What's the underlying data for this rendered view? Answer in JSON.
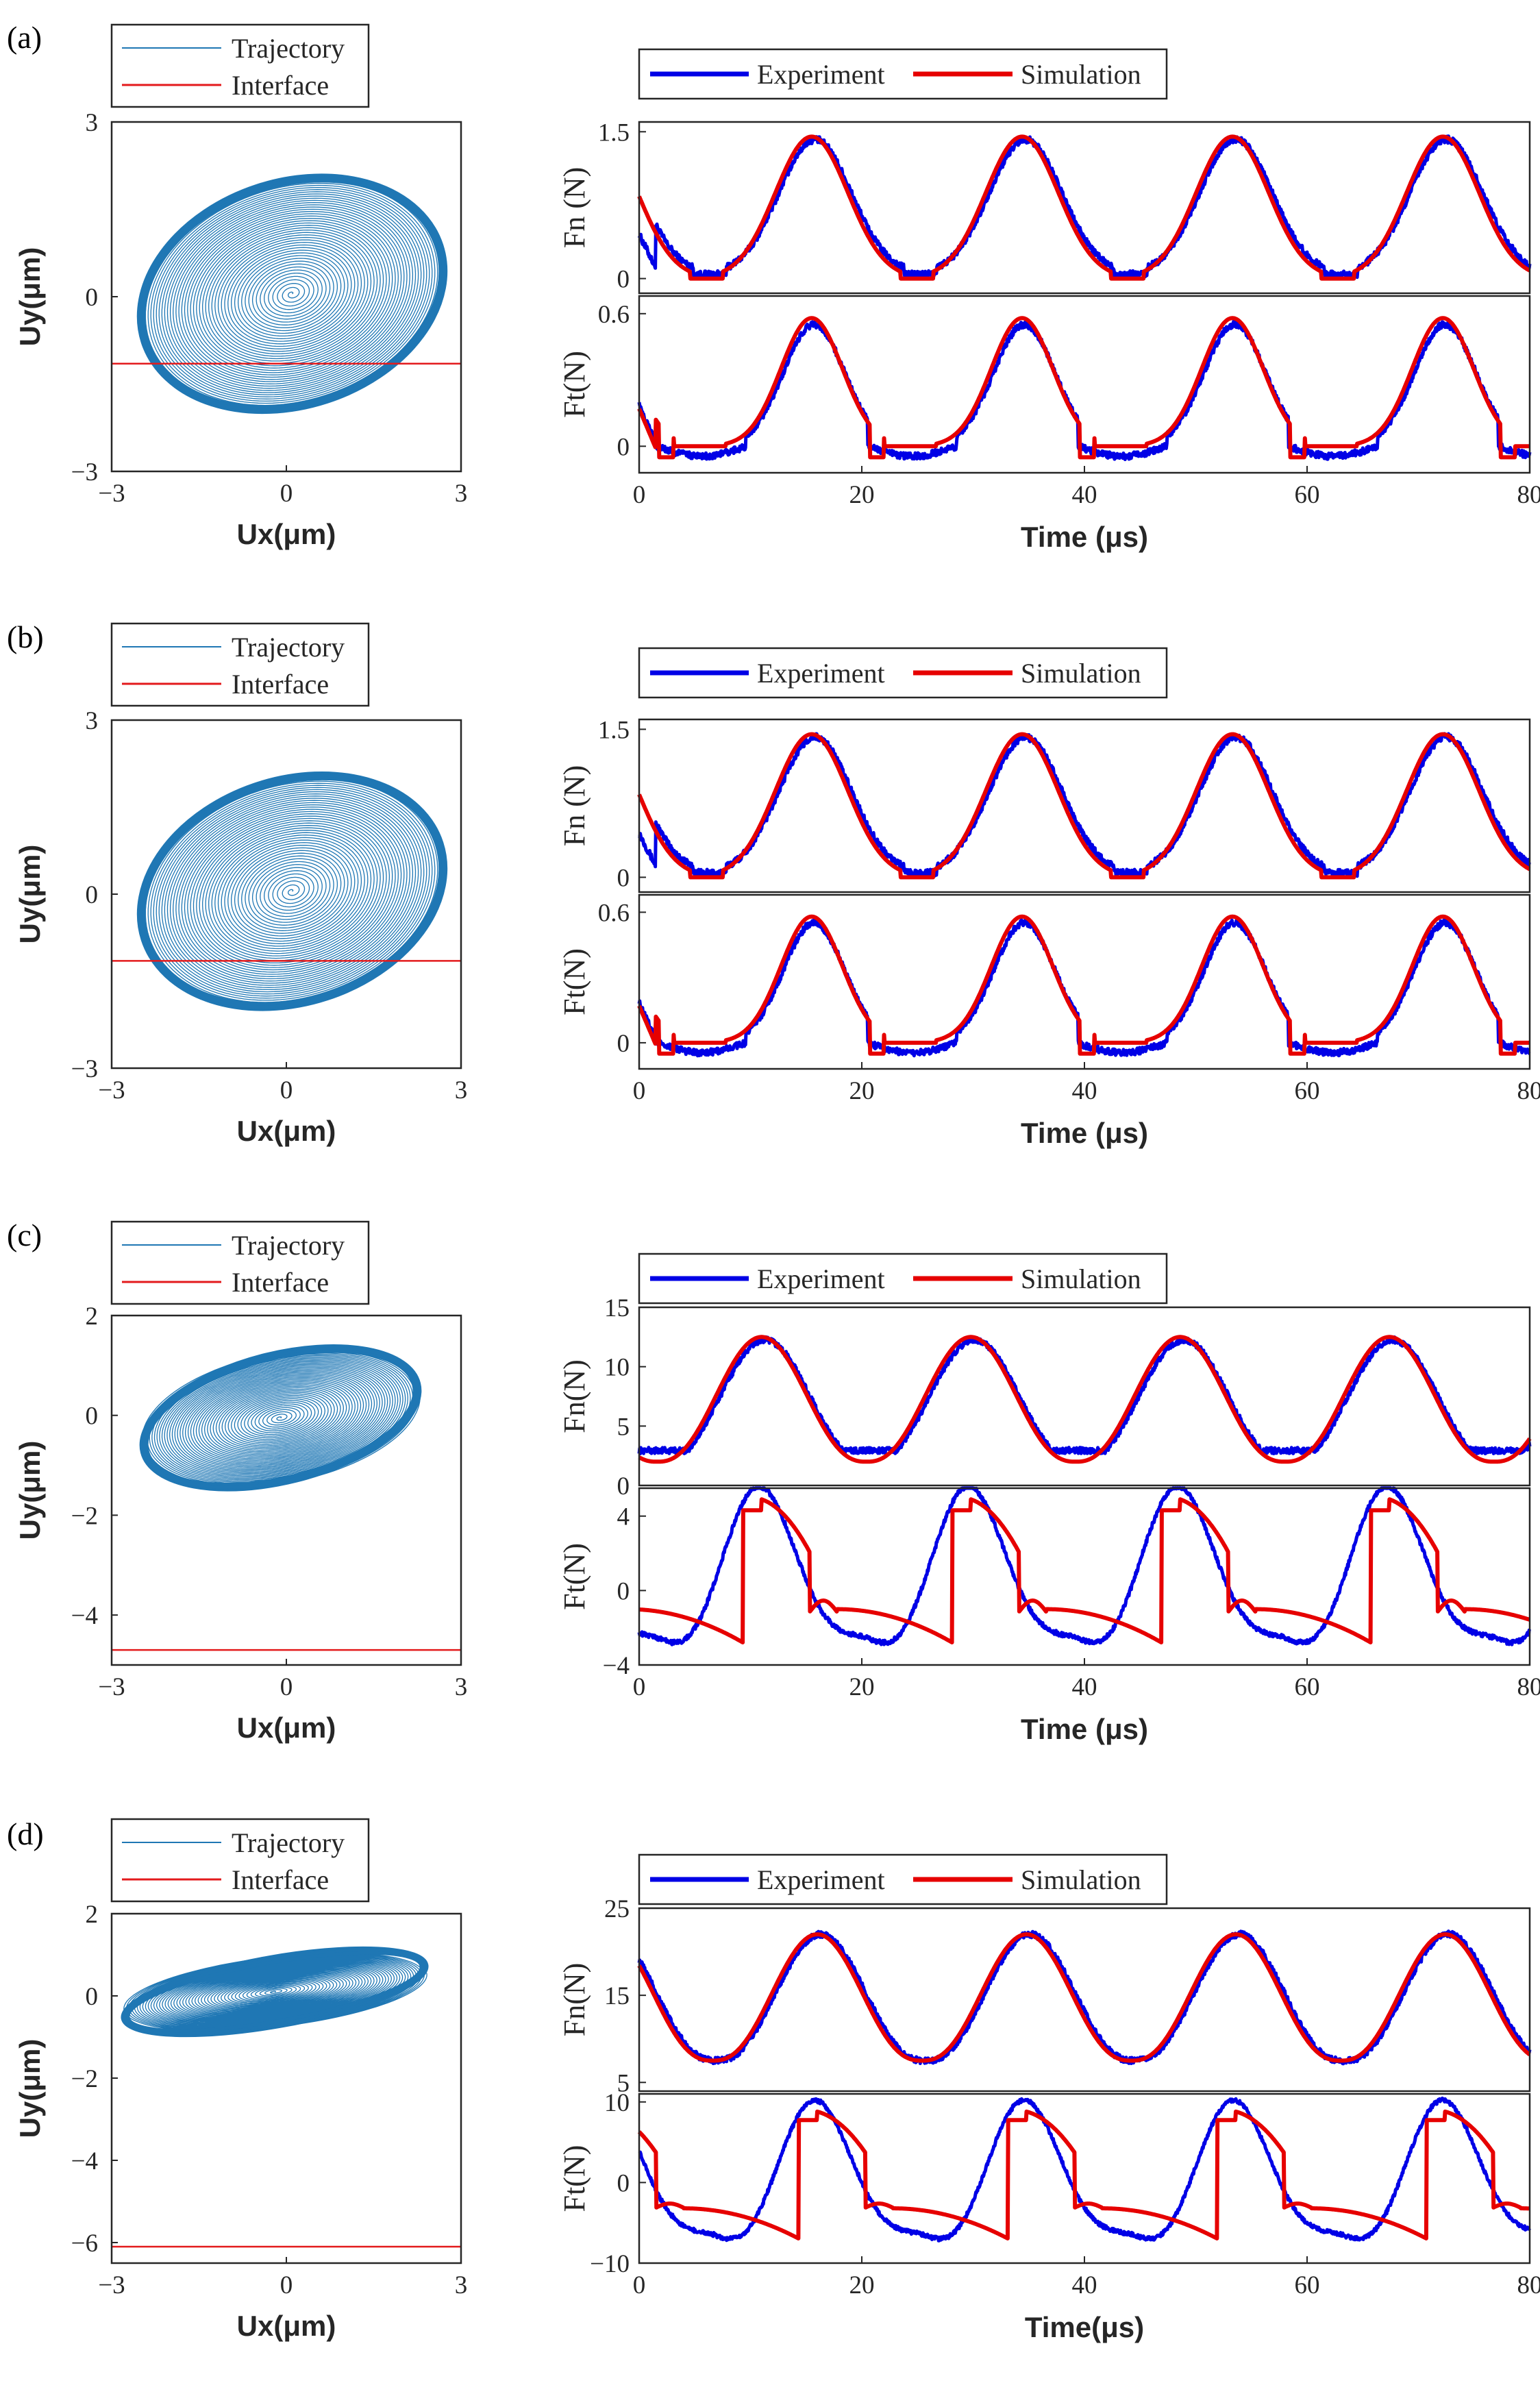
{
  "figure": {
    "panels": [
      {
        "label": "(a)",
        "legend_left": {
          "trajectory": "Trajectory",
          "interface": "Interface"
        },
        "legend_right": {
          "experiment": "Experiment",
          "simulation": "Simulation"
        },
        "xlabel_left": "Ux(μm)",
        "ylabel_left": "Uy(μm)",
        "xlabel_right": "Time (μs)",
        "ylabel_fn": "Fn (N)",
        "ylabel_ft": "Ft(N)"
      },
      {
        "label": "(b)",
        "legend_left": {
          "trajectory": "Trajectory",
          "interface": "Interface"
        },
        "legend_right": {
          "experiment": "Experiment",
          "simulation": "Simulation"
        },
        "xlabel_left": "Ux(μm)",
        "ylabel_left": "Uy(μm)",
        "xlabel_right": "Time (μs)",
        "ylabel_fn": "Fn (N)",
        "ylabel_ft": "Ft(N)"
      },
      {
        "label": "(c)",
        "legend_left": {
          "trajectory": "Trajectory",
          "interface": "Interface"
        },
        "legend_right": {
          "experiment": "Experiment",
          "simulation": "Simulation"
        },
        "xlabel_left": "Ux(μm)",
        "ylabel_left": "Uy(μm)",
        "xlabel_right": "Time (μs)",
        "ylabel_fn": "Fn(N)",
        "ylabel_ft": "Ft(N)"
      },
      {
        "label": "(d)",
        "legend_left": {
          "trajectory": "Trajectory",
          "interface": "Interface"
        },
        "legend_right": {
          "experiment": "Experiment",
          "simulation": "Simulation"
        },
        "xlabel_left": "Ux(μm)",
        "ylabel_left": "Uy(μm)",
        "xlabel_right": "Time(μs)",
        "ylabel_fn": "Fn(N)",
        "ylabel_ft": "Ft(N)"
      }
    ],
    "colors": {
      "trajectory": "#1f77b4",
      "interface": "#e31a1c",
      "experiment": "#0000e6",
      "simulation": "#e60000",
      "axis": "#262626"
    }
  },
  "chart_data": [
    {
      "panel": "(a)",
      "trajectory": {
        "type": "line",
        "xlim": [
          -3,
          3
        ],
        "ylim": [
          -3,
          3
        ],
        "xticks": [
          -3,
          0,
          3
        ],
        "yticks": [
          -3,
          0,
          3
        ],
        "outer_ellipse": {
          "cx": 0.1,
          "cy": 0.05,
          "rx": 2.7,
          "ry": 1.95,
          "tilt_deg": 18
        },
        "interface_y": -1.15
      },
      "time_series": {
        "type": "line",
        "xlim": [
          0,
          80
        ],
        "xticks": [
          0,
          20,
          40,
          60,
          80
        ],
        "period": 18.9,
        "peak_times": [
          15.5,
          34.4,
          53.3,
          72.2
        ],
        "fn": {
          "ylim": [
            -0.15,
            1.6
          ],
          "yticks": [
            0,
            1.5
          ],
          "ytick_labels": [
            "0",
            "1.5"
          ],
          "peak": 1.45,
          "min": 0,
          "start_value": 0.45
        },
        "ft": {
          "ylim": [
            -0.12,
            0.68
          ],
          "yticks": [
            0,
            0.6
          ],
          "ytick_labels": [
            "0",
            "0.6"
          ],
          "peak": 0.58,
          "min": -0.05
        }
      }
    },
    {
      "panel": "(b)",
      "trajectory": {
        "type": "line",
        "xlim": [
          -3,
          3
        ],
        "ylim": [
          -3,
          3
        ],
        "xticks": [
          -3,
          0,
          3
        ],
        "yticks": [
          -3,
          0,
          3
        ],
        "outer_ellipse": {
          "cx": 0.1,
          "cy": 0.05,
          "rx": 2.7,
          "ry": 1.95,
          "tilt_deg": 18
        },
        "interface_y": -1.15
      },
      "time_series": {
        "type": "line",
        "xlim": [
          0,
          80
        ],
        "xticks": [
          0,
          20,
          40,
          60,
          80
        ],
        "period": 18.9,
        "peak_times": [
          15.5,
          34.4,
          53.3,
          72.2
        ],
        "fn": {
          "ylim": [
            -0.15,
            1.6
          ],
          "yticks": [
            0,
            1.5
          ],
          "ytick_labels": [
            "0",
            "1.5"
          ],
          "peak": 1.45,
          "min": 0,
          "start_value": 0.45
        },
        "ft": {
          "ylim": [
            -0.12,
            0.68
          ],
          "yticks": [
            0,
            0.6
          ],
          "ytick_labels": [
            "0",
            "0.6"
          ],
          "peak": 0.58,
          "min": -0.05
        }
      }
    },
    {
      "panel": "(c)",
      "trajectory": {
        "type": "line",
        "xlim": [
          -3,
          3
        ],
        "ylim": [
          -5,
          2
        ],
        "xticks": [
          -3,
          0,
          3
        ],
        "yticks": [
          -4,
          -2,
          0,
          2
        ],
        "outer_ellipse": {
          "cx": -0.1,
          "cy": -0.05,
          "rx": 2.45,
          "ry": 1.3,
          "tilt_deg": 14
        },
        "interface_y": -4.7
      },
      "time_series": {
        "type": "line",
        "xlim": [
          0,
          80
        ],
        "xticks": [
          0,
          20,
          40,
          60,
          80
        ],
        "period": 18.8,
        "peak_times": [
          11,
          29.8,
          48.6,
          67.4
        ],
        "fn": {
          "ylim": [
            0,
            15
          ],
          "yticks": [
            0,
            5,
            10,
            15
          ],
          "ytick_labels": [
            "0",
            "5",
            "10",
            "15"
          ],
          "peak": 12.5,
          "min": 2
        },
        "ft": {
          "ylim": [
            -4,
            5.5
          ],
          "yticks": [
            -4,
            0,
            4
          ],
          "ytick_labels": [
            "−4",
            "0",
            "4"
          ],
          "peak": 4.9,
          "min": -3.2
        }
      }
    },
    {
      "panel": "(d)",
      "trajectory": {
        "type": "line",
        "xlim": [
          -3,
          3
        ],
        "ylim": [
          -6.5,
          2
        ],
        "xticks": [
          -3,
          0,
          3
        ],
        "yticks": [
          -6,
          -4,
          -2,
          0,
          2
        ],
        "outer_ellipse": {
          "cx": -0.2,
          "cy": 0.1,
          "rx": 2.65,
          "ry": 0.85,
          "tilt_deg": 10
        },
        "interface_y": -6.1
      },
      "time_series": {
        "type": "line",
        "xlim": [
          0,
          80
        ],
        "xticks": [
          0,
          20,
          40,
          60,
          80
        ],
        "period": 18.8,
        "peak_times": [
          16,
          34.8,
          53.6,
          72.4
        ],
        "fn": {
          "ylim": [
            4,
            25
          ],
          "yticks": [
            5,
            15,
            25
          ],
          "ytick_labels": [
            "5",
            "15",
            "25"
          ],
          "peak": 22,
          "min": 7.5,
          "start_value": 17.5
        },
        "ft": {
          "ylim": [
            -10,
            11
          ],
          "yticks": [
            -10,
            0,
            10
          ],
          "ytick_labels": [
            "−10",
            "0",
            "10"
          ],
          "peak": 8.8,
          "min": -7.8
        }
      }
    }
  ]
}
